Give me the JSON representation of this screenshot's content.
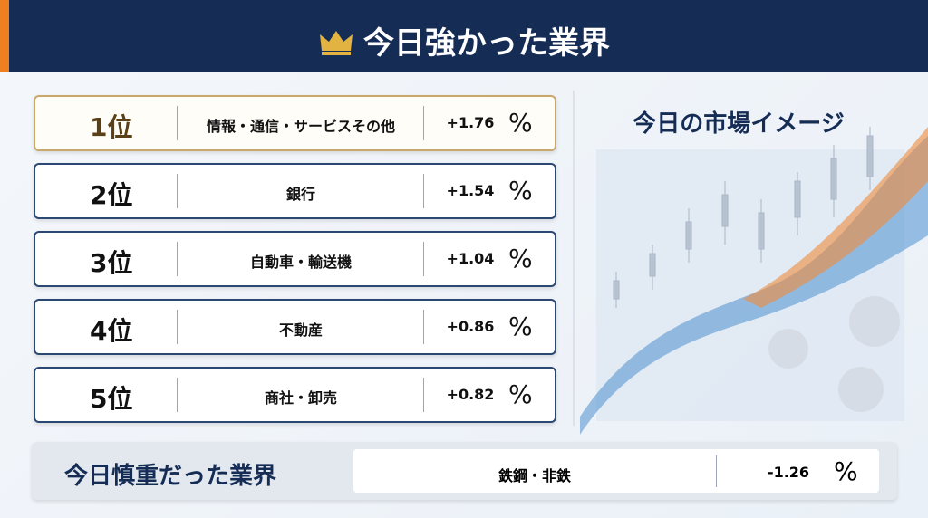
{
  "header": {
    "title": "今日強かった業界"
  },
  "ranking": [
    {
      "rank": "1位",
      "sector": "情報・通信・サービスその他",
      "change": "+1.76",
      "unit": "%"
    },
    {
      "rank": "2位",
      "sector": "銀行",
      "change": "+1.54",
      "unit": "%"
    },
    {
      "rank": "3位",
      "sector": "自動車・輸送機",
      "change": "+1.04",
      "unit": "%"
    },
    {
      "rank": "4位",
      "sector": "不動産",
      "change": "+0.86",
      "unit": "%"
    },
    {
      "rank": "5位",
      "sector": "商社・卸売",
      "change": "+0.82",
      "unit": "%"
    }
  ],
  "market_image": {
    "title": "今日の市場イメージ"
  },
  "weak": {
    "title": "今日慎重だった業界",
    "sector": "鉄鋼・非鉄",
    "change": "-1.26",
    "unit": "%"
  }
}
